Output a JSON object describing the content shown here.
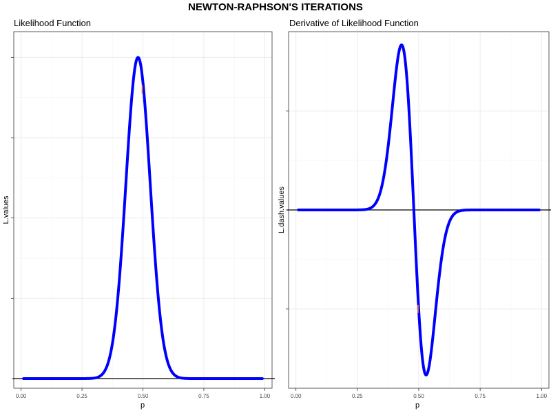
{
  "title": "NEWTON-RAPHSON'S ITERATIONS",
  "colors": {
    "curve": "#0000ff",
    "iterate": "#ff8c00",
    "zero_line": "#000000"
  },
  "chart_data": [
    {
      "type": "line",
      "title": "Likelihood Function",
      "xlabel": "p",
      "ylabel": "L.values",
      "xlim": [
        -0.03,
        1.03
      ],
      "ylim": [
        -0.03,
        1.08
      ],
      "x_ticks": [
        0,
        0.25,
        0.5,
        0.75,
        1
      ],
      "x_tick_labels": [
        "0.00",
        "0.25",
        "0.50",
        "0.75",
        "1.00"
      ],
      "y_ticks": [
        0.25,
        0.5,
        0.75,
        1
      ],
      "grid": true,
      "horizontal_line_y": 0,
      "curve": "likelihood",
      "series": [
        {
          "x": [
            0.01,
            0.3,
            0.34,
            0.38,
            0.42,
            0.45,
            0.48,
            0.5,
            0.53,
            0.56,
            0.6,
            0.64,
            0.67,
            0.99
          ],
          "y": [
            0,
            0.005,
            0.05,
            0.22,
            0.56,
            0.85,
            1.0,
            0.93,
            0.66,
            0.34,
            0.08,
            0.01,
            0,
            0
          ]
        }
      ],
      "iterates": [
        {
          "x": 0.497,
          "y": 0.9
        }
      ]
    },
    {
      "type": "line",
      "title": "Derivative of Likelihood Function",
      "xlabel": "p",
      "ylabel": "L.dash.values",
      "xlim": [
        -0.03,
        1.03
      ],
      "ylim": [
        -1.08,
        1.08
      ],
      "x_ticks": [
        0,
        0.25,
        0.5,
        0.75,
        1
      ],
      "x_tick_labels": [
        "0.00",
        "0.25",
        "0.50",
        "0.75",
        "1.00"
      ],
      "y_ticks": [
        -0.6,
        0,
        0.6
      ],
      "grid": true,
      "horizontal_line_y": 0,
      "curve": "derivative",
      "series": [
        {
          "x": [
            0.01,
            0.3,
            0.34,
            0.38,
            0.41,
            0.44,
            0.47,
            0.485,
            0.5,
            0.52,
            0.55,
            0.58,
            0.62,
            0.66,
            0.99
          ],
          "y": [
            0,
            0.005,
            0.03,
            0.3,
            0.78,
            1.0,
            0.6,
            0.12,
            -0.4,
            -1.0,
            -0.8,
            -0.4,
            -0.08,
            0,
            0
          ]
        }
      ],
      "iterates": [
        {
          "x": 0.497,
          "y": -0.6
        }
      ]
    }
  ]
}
